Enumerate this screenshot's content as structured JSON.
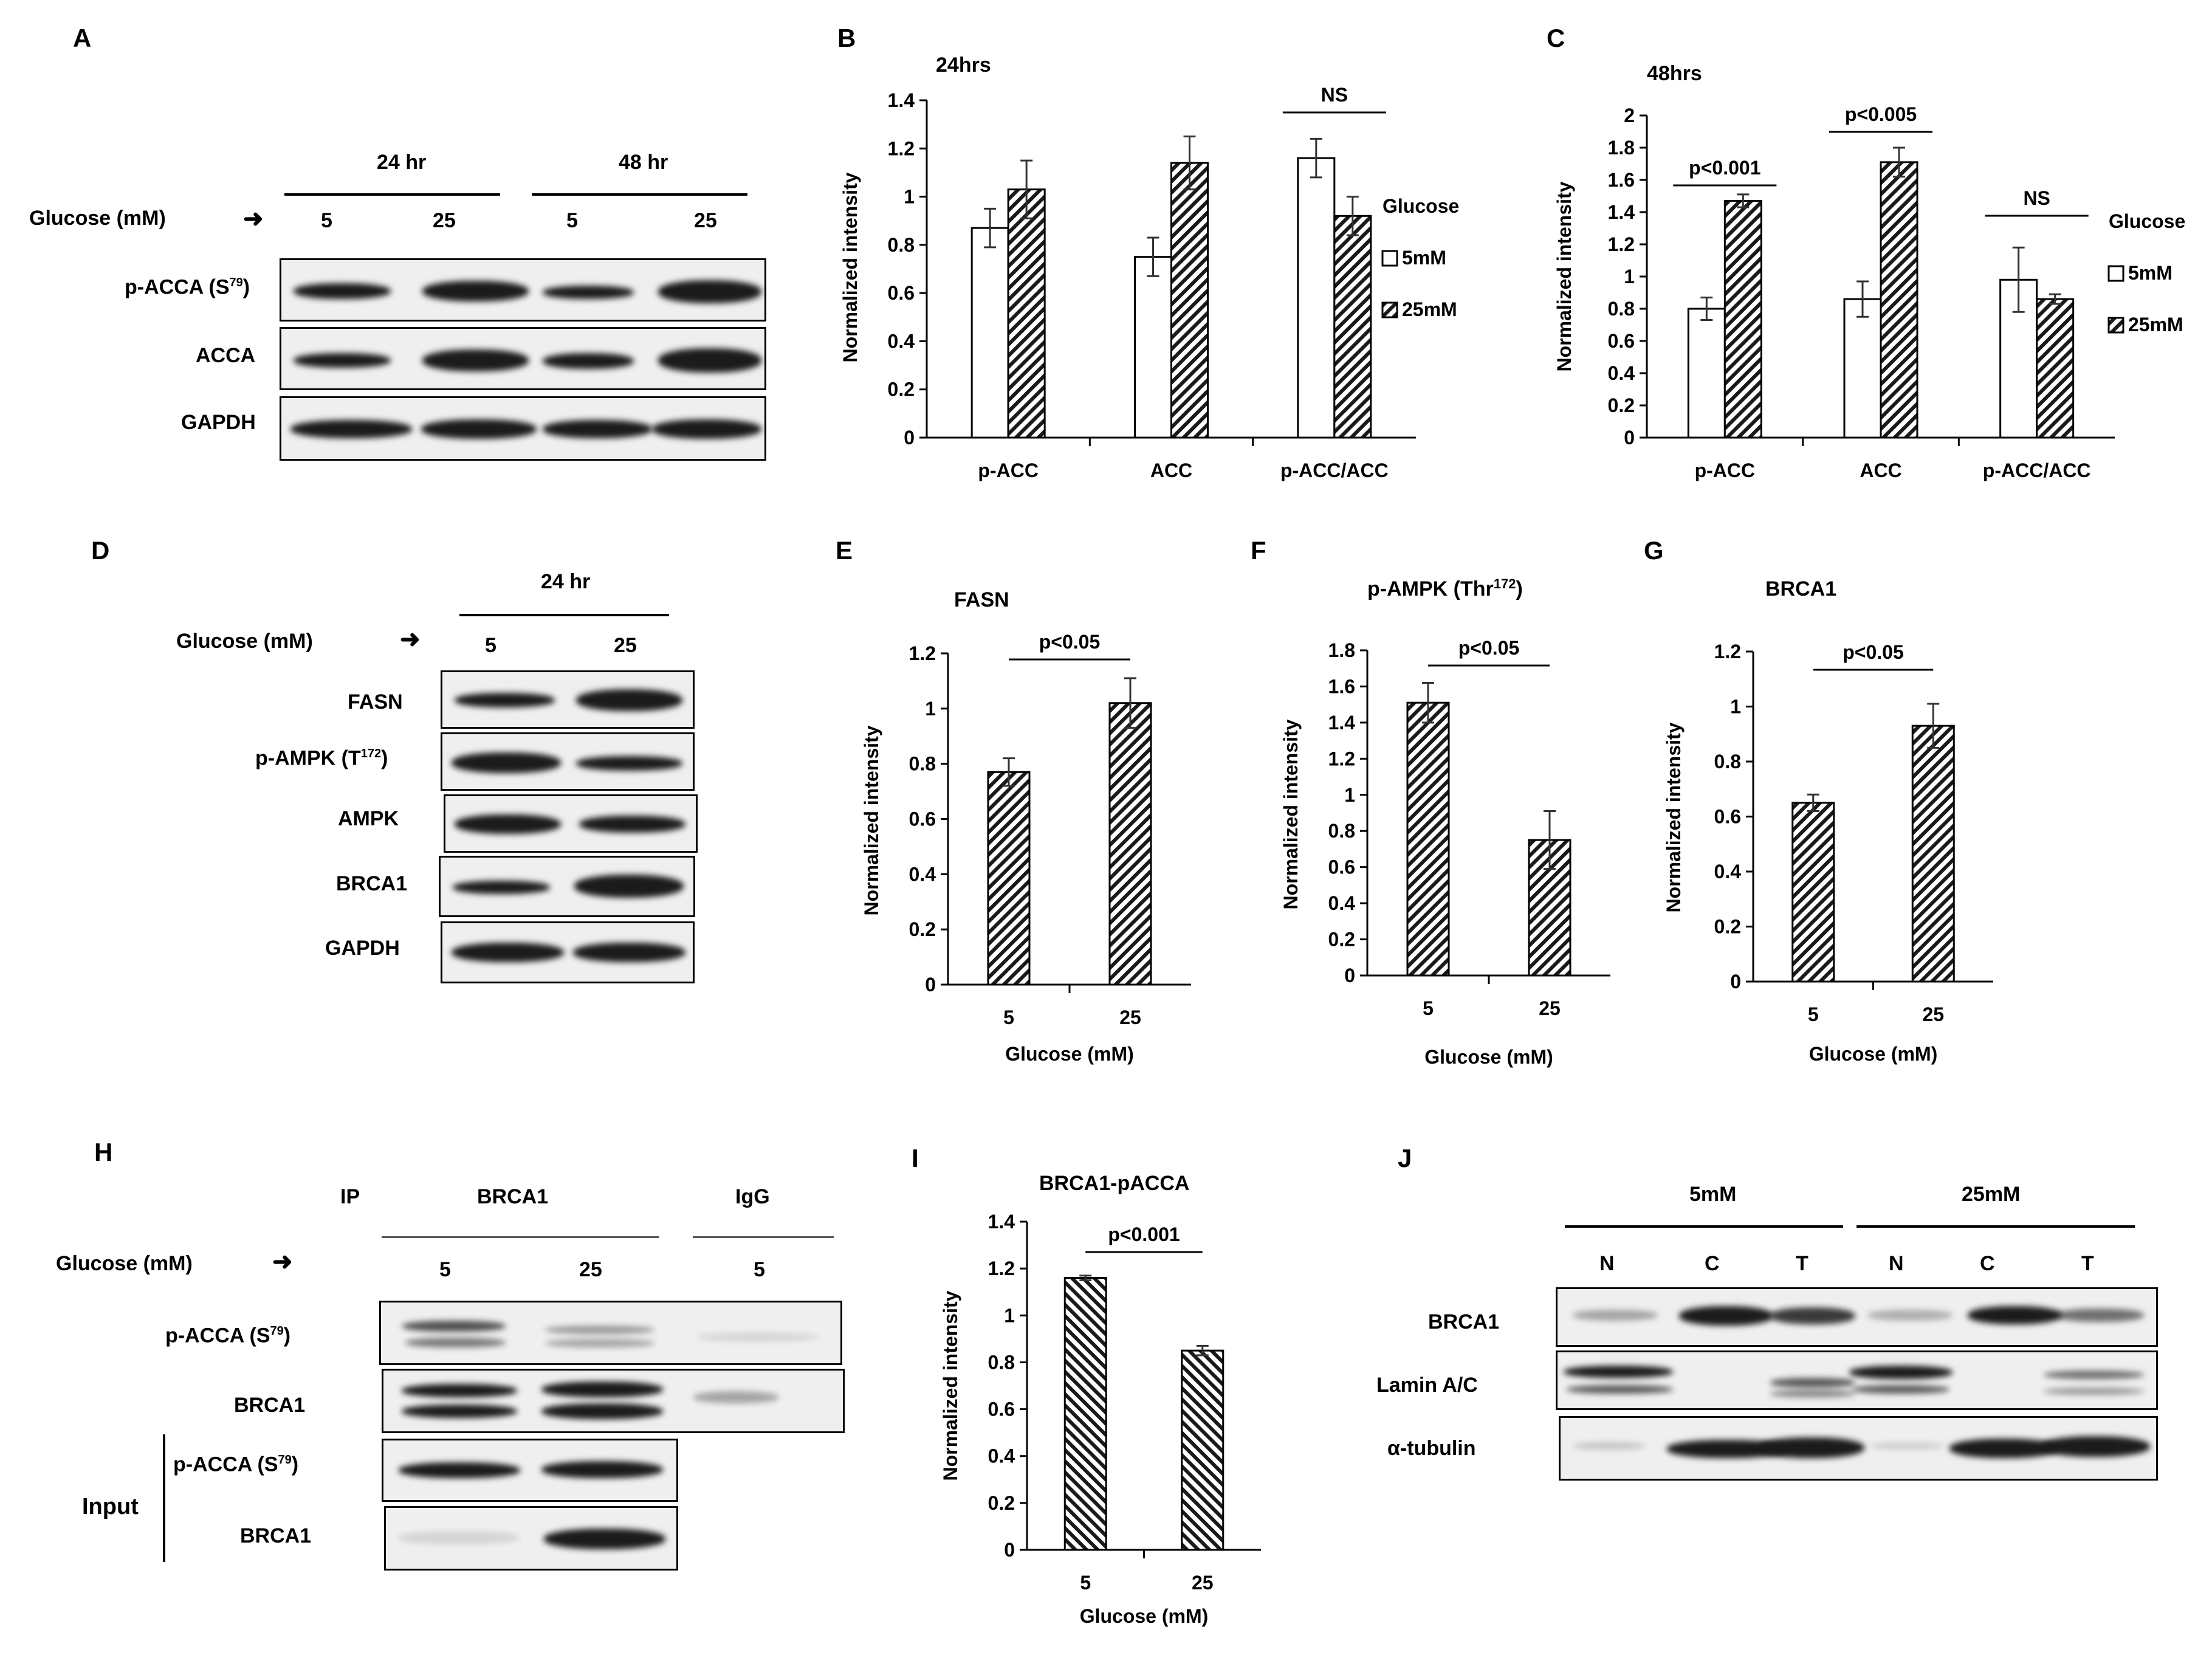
{
  "panels": {
    "A": "A",
    "B": "B",
    "C": "C",
    "D": "D",
    "E": "E",
    "F": "F",
    "G": "G",
    "H": "H",
    "I": "I",
    "J": "J"
  },
  "panel_a": {
    "group1": "24 hr",
    "group2": "48 hr",
    "glucose_label": "Glucose (mM)",
    "arrow": "➜",
    "lanes": [
      "5",
      "25",
      "5",
      "25"
    ],
    "rows": [
      {
        "label": "p-ACCA (S",
        "sup": "79",
        "tail": ")"
      },
      {
        "label": "ACCA",
        "sup": "",
        "tail": ""
      },
      {
        "label": "GAPDH",
        "sup": "",
        "tail": ""
      }
    ]
  },
  "panel_d": {
    "group": "24 hr",
    "glucose_label": "Glucose (mM)",
    "arrow": "➜",
    "lanes": [
      "5",
      "25"
    ],
    "rows": [
      {
        "label": "FASN",
        "sup": "",
        "tail": ""
      },
      {
        "label": "p-AMPK (T",
        "sup": "172",
        "tail": ")"
      },
      {
        "label": "AMPK",
        "sup": "",
        "tail": ""
      },
      {
        "label": "BRCA1",
        "sup": "",
        "tail": ""
      },
      {
        "label": "GAPDH",
        "sup": "",
        "tail": ""
      }
    ]
  },
  "panel_h": {
    "ip_label": "IP",
    "ip_brca1": "BRCA1",
    "ip_igg": "IgG",
    "glucose_label": "Glucose (mM)",
    "arrow": "➜",
    "lanes": [
      "5",
      "25",
      "5"
    ],
    "input_label": "Input",
    "rows": [
      {
        "label": "p-ACCA (S",
        "sup": "79",
        "tail": ")"
      },
      {
        "label": "BRCA1",
        "sup": "",
        "tail": ""
      },
      {
        "label": "p-ACCA (S",
        "sup": "79",
        "tail": ")"
      },
      {
        "label": "BRCA1",
        "sup": "",
        "tail": ""
      }
    ]
  },
  "panel_j": {
    "group1": "5mM",
    "group2": "25mM",
    "lanes": [
      "N",
      "C",
      "T",
      "N",
      "C",
      "T"
    ],
    "rows": [
      {
        "label": "BRCA1",
        "sup": "",
        "tail": ""
      },
      {
        "label": "Lamin A/C",
        "sup": "",
        "tail": ""
      },
      {
        "label": "α-tubulin",
        "sup": "",
        "tail": ""
      }
    ]
  },
  "chart_data": [
    {
      "id": "B",
      "type": "bar",
      "title": "24hrs",
      "ylabel": "Normalized intensity",
      "xlabel": "",
      "ylim": [
        0,
        1.4
      ],
      "yticks": [
        "0",
        "0.2",
        "0.4",
        "0.6",
        "0.8",
        "1",
        "1.2",
        "1.4"
      ],
      "categories": [
        "p-ACC",
        "ACC",
        "p-ACC/ACC"
      ],
      "legend_title": "Glucose",
      "series": [
        {
          "name": "5mM",
          "values": [
            0.87,
            0.75,
            1.16
          ],
          "errors": [
            0.08,
            0.08,
            0.08
          ]
        },
        {
          "name": "25mM",
          "values": [
            1.03,
            1.14,
            0.92
          ],
          "errors": [
            0.12,
            0.11,
            0.08
          ]
        }
      ],
      "annotations": [
        {
          "text": "NS",
          "category": 2
        }
      ]
    },
    {
      "id": "C",
      "type": "bar",
      "title": "48hrs",
      "ylabel": "Normalized intensity",
      "xlabel": "",
      "ylim": [
        0,
        2
      ],
      "yticks": [
        "0",
        "0.2",
        "0.4",
        "0.6",
        "0.8",
        "1",
        "1.2",
        "1.4",
        "1.6",
        "1.8",
        "2"
      ],
      "categories": [
        "p-ACC",
        "ACC",
        "p-ACC/ACC"
      ],
      "legend_title": "Glucose",
      "series": [
        {
          "name": "5mM",
          "values": [
            0.8,
            0.86,
            0.98
          ],
          "errors": [
            0.07,
            0.11,
            0.2
          ]
        },
        {
          "name": "25mM",
          "values": [
            1.47,
            1.71,
            0.86
          ],
          "errors": [
            0.04,
            0.09,
            0.03
          ]
        }
      ],
      "annotations": [
        {
          "text": "p<0.001",
          "category": 0
        },
        {
          "text": "p<0.005",
          "category": 1
        },
        {
          "text": "NS",
          "category": 2
        }
      ]
    },
    {
      "id": "E",
      "type": "bar",
      "title": "FASN",
      "ylabel": "Normalized intensity",
      "xlabel": "Glucose (mM)",
      "ylim": [
        0,
        1.2
      ],
      "yticks": [
        "0",
        "0.2",
        "0.4",
        "0.6",
        "0.8",
        "1",
        "1.2"
      ],
      "categories": [
        "5",
        "25"
      ],
      "values": [
        0.77,
        1.02
      ],
      "errors": [
        0.05,
        0.09
      ],
      "annotations": [
        {
          "text": "p<0.05"
        }
      ]
    },
    {
      "id": "F",
      "type": "bar",
      "title": "p-AMPK (Thr",
      "title_sup": "172",
      "title_tail": ")",
      "ylabel": "Normalized intensity",
      "xlabel": "Glucose (mM)",
      "ylim": [
        0,
        1.8
      ],
      "yticks": [
        "0",
        "0.2",
        "0.4",
        "0.6",
        "0.8",
        "1",
        "1.2",
        "1.4",
        "1.6",
        "1.8"
      ],
      "categories": [
        "5",
        "25"
      ],
      "values": [
        1.51,
        0.75
      ],
      "errors": [
        0.11,
        0.16
      ],
      "annotations": [
        {
          "text": "p<0.05"
        }
      ]
    },
    {
      "id": "G",
      "type": "bar",
      "title": "BRCA1",
      "ylabel": "Normalized intensity",
      "xlabel": "Glucose (mM)",
      "ylim": [
        0,
        1.2
      ],
      "yticks": [
        "0",
        "0.2",
        "0.4",
        "0.6",
        "0.8",
        "1",
        "1.2"
      ],
      "categories": [
        "5",
        "25"
      ],
      "values": [
        0.65,
        0.93
      ],
      "errors": [
        0.03,
        0.08
      ],
      "annotations": [
        {
          "text": "p<0.05"
        }
      ]
    },
    {
      "id": "I",
      "type": "bar",
      "title": "BRCA1-pACCA",
      "ylabel": "Normalized intensity",
      "xlabel": "Glucose (mM)",
      "ylim": [
        0,
        1.4
      ],
      "yticks": [
        "0",
        "0.2",
        "0.4",
        "0.6",
        "0.8",
        "1",
        "1.2",
        "1.4"
      ],
      "categories": [
        "5",
        "25"
      ],
      "values": [
        1.16,
        0.85
      ],
      "errors": [
        0.01,
        0.02
      ],
      "annotations": [
        {
          "text": "p<0.001"
        }
      ]
    }
  ]
}
